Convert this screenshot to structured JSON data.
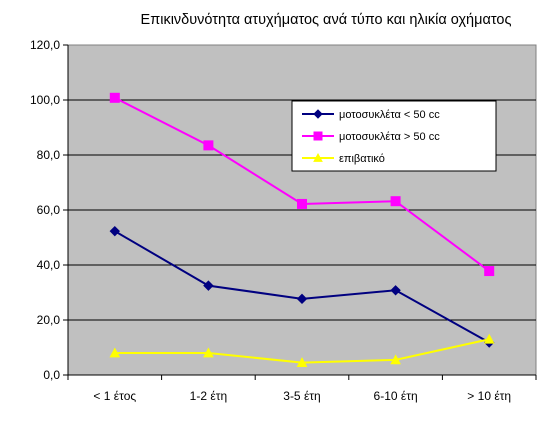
{
  "chart_data": {
    "type": "line",
    "title": "Επικινδυνότητα ατυχήματος ανά τύπο και ηλικία οχήματος",
    "xlabel": "",
    "ylabel": "",
    "categories": [
      "< 1 έτος",
      "1-2 έτη",
      "3-5 έτη",
      "6-10 έτη",
      "> 10 έτη"
    ],
    "y_tick_labels": [
      "0,0",
      "20,0",
      "40,0",
      "60,0",
      "80,0",
      "100,0",
      "120,0"
    ],
    "ylim": [
      0,
      120
    ],
    "y_step": 20,
    "grid": true,
    "legend_position": "top-right",
    "plot_background": "#C0C0C0",
    "series": [
      {
        "name": "μοτοσυκλέτα < 50 cc",
        "color": "#000080",
        "marker": "diamond",
        "values": [
          52.3,
          32.5,
          27.7,
          30.8,
          11.8
        ]
      },
      {
        "name": "μοτοσυκλέτα > 50 cc",
        "color": "#FF00FF",
        "marker": "square",
        "values": [
          100.8,
          83.5,
          62.2,
          63.2,
          37.8
        ]
      },
      {
        "name": "επιβατικό",
        "color": "#FFFF00",
        "marker": "triangle",
        "values": [
          8.0,
          8.0,
          4.5,
          5.5,
          13.0
        ]
      }
    ]
  }
}
